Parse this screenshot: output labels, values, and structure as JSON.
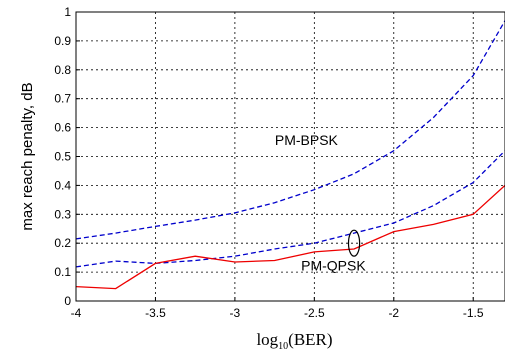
{
  "chart_data": {
    "type": "line",
    "xlabel": "log₁₀(BER)",
    "xlabel_parts": {
      "prefix": "log",
      "sub": "10",
      "suffix": "(BER)"
    },
    "ylabel": "max reach penalty, dB",
    "xlim": [
      -4,
      -1.3
    ],
    "ylim": [
      0,
      1
    ],
    "xticks": [
      -4,
      -3.5,
      -3,
      -2.5,
      -2,
      -1.5
    ],
    "xtick_labels": [
      "-4",
      "-3.5",
      "-3",
      "-2.5",
      "-2",
      "-1.5"
    ],
    "yticks": [
      0,
      0.1,
      0.2,
      0.3,
      0.4,
      0.5,
      0.6,
      0.7,
      0.8,
      0.9,
      1
    ],
    "ytick_labels": [
      "0",
      "0.1",
      "0.2",
      "0.3",
      "0.4",
      "0.5",
      "0.6",
      "0.7",
      "0.8",
      "0.9",
      "1"
    ],
    "grid": true,
    "series": [
      {
        "color": "#0000cc",
        "linestyle": "dashed",
        "points": [
          [
            -4.0,
            0.215
          ],
          [
            -3.75,
            0.235
          ],
          [
            -3.5,
            0.258
          ],
          [
            -3.25,
            0.28
          ],
          [
            -3.0,
            0.305
          ],
          [
            -2.75,
            0.34
          ],
          [
            -2.5,
            0.385
          ],
          [
            -2.25,
            0.44
          ],
          [
            -2.0,
            0.52
          ],
          [
            -1.75,
            0.635
          ],
          [
            -1.5,
            0.78
          ],
          [
            -1.3,
            0.97
          ]
        ]
      },
      {
        "color": "#0000cc",
        "linestyle": "dashed",
        "points": [
          [
            -4.0,
            0.118
          ],
          [
            -3.75,
            0.138
          ],
          [
            -3.5,
            0.13
          ],
          [
            -3.25,
            0.14
          ],
          [
            -3.0,
            0.155
          ],
          [
            -2.75,
            0.18
          ],
          [
            -2.5,
            0.2
          ],
          [
            -2.25,
            0.235
          ],
          [
            -2.0,
            0.27
          ],
          [
            -1.75,
            0.33
          ],
          [
            -1.5,
            0.41
          ],
          [
            -1.3,
            0.52
          ]
        ]
      },
      {
        "color": "#ee0000",
        "linestyle": "solid",
        "points": [
          [
            -4.0,
            0.05
          ],
          [
            -3.75,
            0.043
          ],
          [
            -3.5,
            0.13
          ],
          [
            -3.25,
            0.155
          ],
          [
            -3.0,
            0.135
          ],
          [
            -2.75,
            0.14
          ],
          [
            -2.5,
            0.17
          ],
          [
            -2.25,
            0.18
          ],
          [
            -2.0,
            0.24
          ],
          [
            -1.75,
            0.265
          ],
          [
            -1.5,
            0.3
          ],
          [
            -1.3,
            0.4
          ]
        ]
      }
    ],
    "annotations": [
      {
        "text": "PM-BPSK",
        "x": -2.55,
        "y": 0.54
      },
      {
        "text": "PM-QPSK",
        "x": -2.38,
        "y": 0.105
      }
    ],
    "ellipse_marker": {
      "x": -2.25,
      "y": 0.2,
      "rx_data": 0.035,
      "ry_data": 0.045
    }
  }
}
